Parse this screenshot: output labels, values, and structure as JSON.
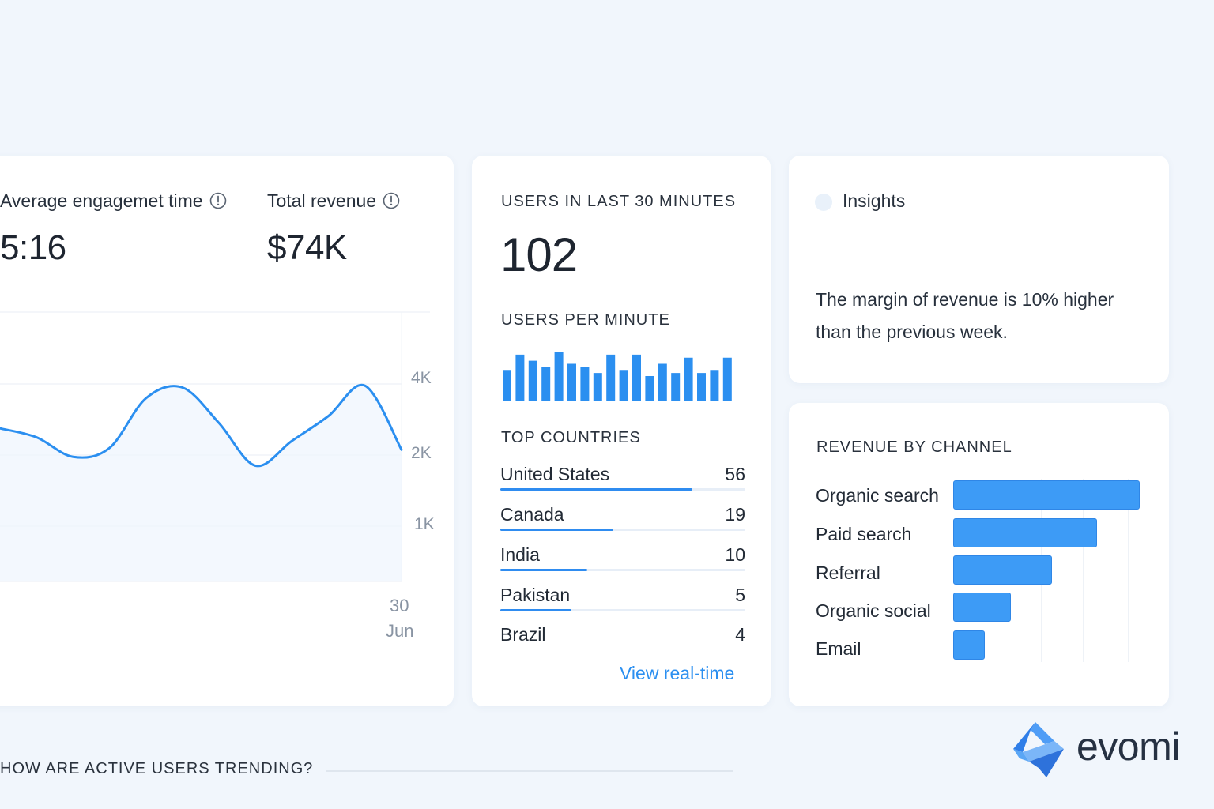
{
  "overview": {
    "engagement_label": "Average engagemet time",
    "engagement_value": "5:16",
    "revenue_label": "Total revenue",
    "revenue_value": "$74K"
  },
  "trend_chart": {
    "type": "line",
    "y_tick_labels": [
      "4K",
      "2K",
      "1K"
    ],
    "x_tick_day": "30",
    "x_tick_month": "Jun",
    "series_color": "#2b8ff0",
    "values": [
      2750,
      2500,
      1950,
      2200,
      3600,
      3900,
      2900,
      1700,
      2400,
      3100,
      3950,
      2150
    ]
  },
  "realtime": {
    "users_30min_label": "USERS IN LAST 30 MINUTES",
    "users_30min_value": "102",
    "per_minute_label": "USERS PER MINUTE",
    "per_minute_values": [
      5,
      7.5,
      6.5,
      5.5,
      8,
      6,
      5.5,
      4.5,
      7.5,
      5,
      7.5,
      4,
      6,
      4.5,
      7,
      4.5,
      5,
      7
    ],
    "top_countries_label": "TOP COUNTRIES",
    "countries": [
      {
        "name": "United States",
        "value": "56",
        "fraction": 0.785
      },
      {
        "name": "Canada",
        "value": "19",
        "fraction": 0.46
      },
      {
        "name": "India",
        "value": "10",
        "fraction": 0.355
      },
      {
        "name": "Pakistan",
        "value": "5",
        "fraction": 0.29
      },
      {
        "name": "Brazil",
        "value": "4",
        "fraction": 0
      }
    ],
    "view_link": "View real-time"
  },
  "insights": {
    "title": "Insights",
    "text": "The margin of revenue is 10% higher than the previous week."
  },
  "revenue_by_channel": {
    "type": "bar",
    "title": "REVENUE BY CHANNEL",
    "categories": [
      "Organic search",
      "Paid search",
      "Referral",
      "Organic social",
      "Email"
    ],
    "values": [
      100,
      77,
      53,
      31,
      17
    ],
    "bar_color": "#3d9bf6"
  },
  "footer": {
    "question": "HOW ARE ACTIVE USERS TRENDING?"
  },
  "brand": {
    "name": "evomi"
  }
}
